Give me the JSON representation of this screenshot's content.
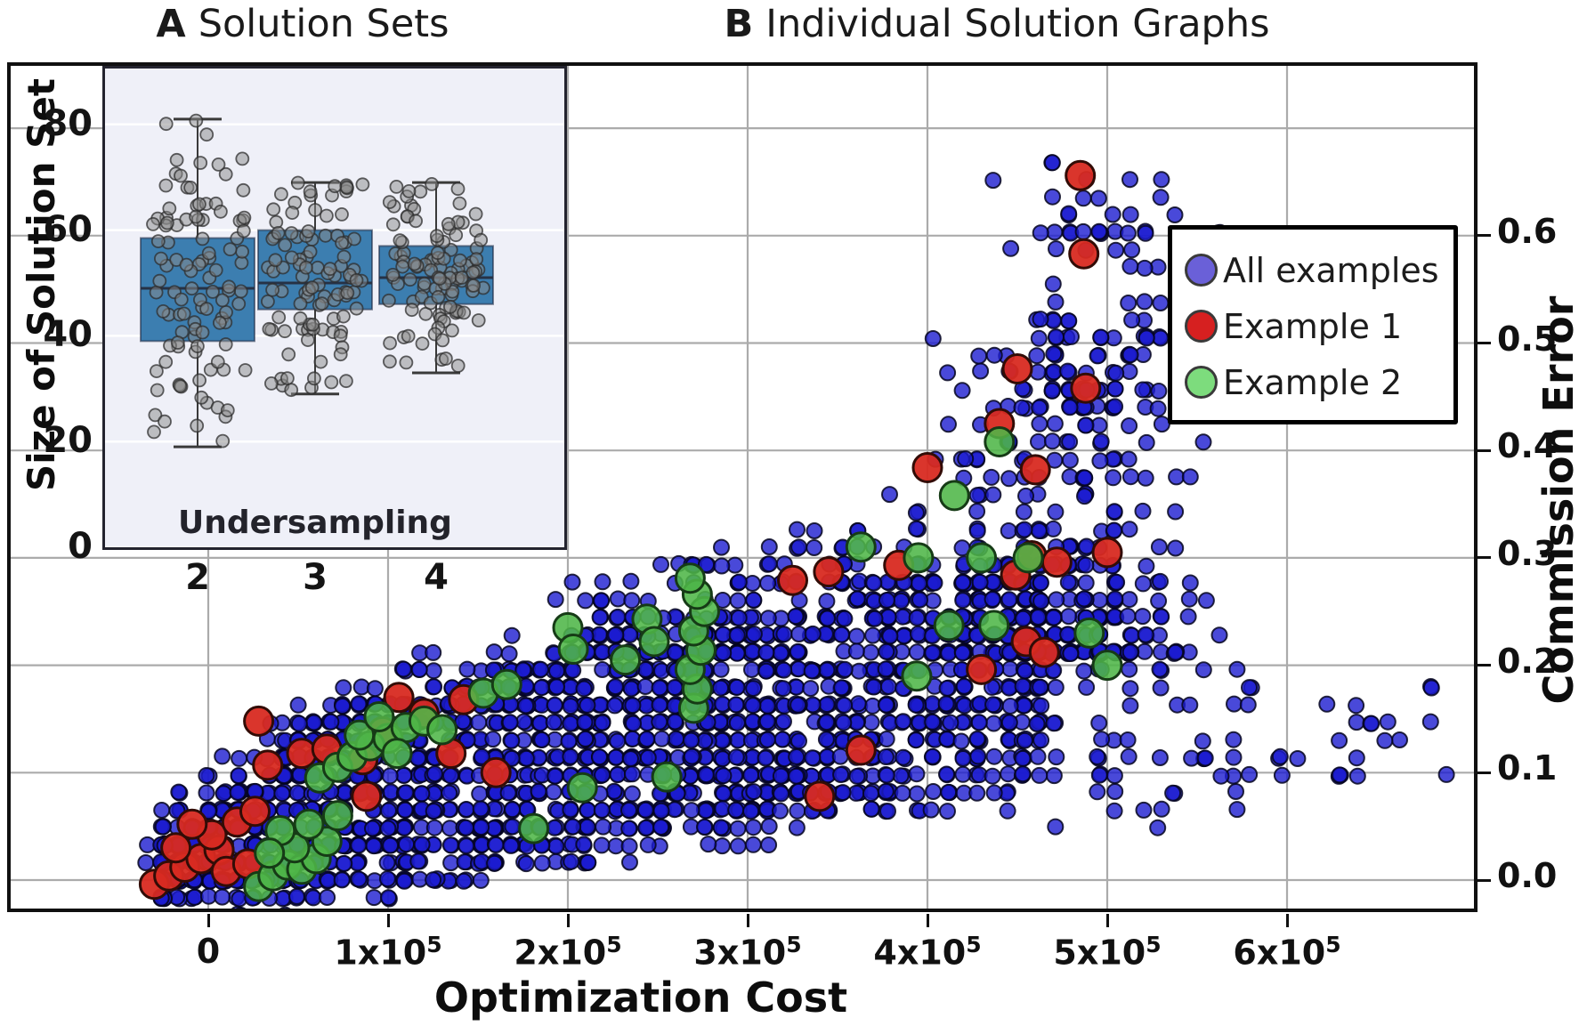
{
  "titles": {
    "panel_a": {
      "label": "A",
      "text": "Solution Sets"
    },
    "panel_b": {
      "label": "B",
      "text": "Individual Solution Graphs"
    }
  },
  "chart_data": [
    {
      "type": "box",
      "panel": "A",
      "title": "Solution Sets",
      "xlabel": "Undersampling",
      "ylabel": "Size of Solution Set",
      "categories": [
        "2",
        "3",
        "4"
      ],
      "yticks": [
        0,
        20,
        40,
        60,
        80
      ],
      "ylim": [
        0,
        91
      ],
      "grid": true,
      "background_color": "#eff0f8",
      "gridline_color": "#ffffff",
      "box_fill_color": "#3c7eb0",
      "box_edge_color": "rgba(25,35,60,0.55)",
      "median_color": "#263246",
      "whisker_color": "#3a3a3a",
      "boxes": [
        {
          "category": "2",
          "whisker_low": 19,
          "q1": 39,
          "median": 49,
          "q3": 58.5,
          "whisker_high": 81
        },
        {
          "category": "3",
          "whisker_low": 29,
          "q1": 45,
          "median": 50,
          "q3": 60,
          "whisker_high": 69
        },
        {
          "category": "4",
          "whisker_low": 33,
          "q1": 46,
          "median": 51,
          "q3": 57,
          "whisker_high": 69
        }
      ],
      "jitter_points": {
        "seed": 7,
        "color": "#8a8a8a",
        "edge": "#2e2e2e",
        "radius": 7,
        "x_spread": 0.4,
        "clusters": [
          {
            "category": 0,
            "n": 58,
            "dist": "normal",
            "mean": 49,
            "sd": 7,
            "min": 36,
            "max": 62
          },
          {
            "category": 0,
            "n": 24,
            "dist": "uniform",
            "min": 61,
            "max": 75
          },
          {
            "category": 0,
            "n": 3,
            "dist": "uniform",
            "min": 78,
            "max": 81
          },
          {
            "category": 0,
            "n": 21,
            "dist": "uniform",
            "min": 19,
            "max": 36
          },
          {
            "category": 1,
            "n": 60,
            "dist": "normal",
            "mean": 52,
            "sd": 6,
            "min": 41,
            "max": 64
          },
          {
            "category": 1,
            "n": 22,
            "dist": "uniform",
            "min": 57,
            "max": 69
          },
          {
            "category": 1,
            "n": 21,
            "dist": "uniform",
            "min": 30,
            "max": 44
          },
          {
            "category": 2,
            "n": 68,
            "dist": "normal",
            "mean": 51,
            "sd": 4.5,
            "min": 43,
            "max": 60
          },
          {
            "category": 2,
            "n": 24,
            "dist": "uniform",
            "min": 58,
            "max": 69
          },
          {
            "category": 2,
            "n": 15,
            "dist": "uniform",
            "min": 33,
            "max": 45
          }
        ]
      }
    },
    {
      "type": "scatter",
      "panel": "B",
      "title": "Individual Solution Graphs",
      "xlabel": "Optimization Cost",
      "ylabel": "Commission Error",
      "xlim": [
        -106000,
        704000
      ],
      "ylim": [
        -0.026,
        0.758
      ],
      "grid": true,
      "gridline_color": "#ababab",
      "xticks": [
        {
          "value": 0,
          "base": "0",
          "sup": ""
        },
        {
          "value": 100000,
          "base": "1x10",
          "sup": "5"
        },
        {
          "value": 200000,
          "base": "2x10",
          "sup": "5"
        },
        {
          "value": 300000,
          "base": "3x10",
          "sup": "5"
        },
        {
          "value": 400000,
          "base": "4x10",
          "sup": "5"
        },
        {
          "value": 500000,
          "base": "5x10",
          "sup": "5"
        },
        {
          "value": 600000,
          "base": "6x10",
          "sup": "5"
        }
      ],
      "yticks": [
        {
          "value": 0.0,
          "label": "0.0"
        },
        {
          "value": 0.1,
          "label": "0.1"
        },
        {
          "value": 0.2,
          "label": "0.2"
        },
        {
          "value": 0.3,
          "label": "0.3"
        },
        {
          "value": 0.4,
          "label": "0.4"
        },
        {
          "value": 0.5,
          "label": "0.5"
        },
        {
          "value": 0.6,
          "label": "0.6"
        }
      ],
      "gridline_y_values": [
        0.0,
        0.1,
        0.2,
        0.3,
        0.4,
        0.5,
        0.6,
        0.7
      ],
      "legend": {
        "position": "upper right",
        "entries": [
          {
            "label": "All examples",
            "marker_color": "#6a60d8"
          },
          {
            "label": "Example 1",
            "marker_color": "#d62020"
          },
          {
            "label": "Example 2",
            "marker_color": "#7ddc7d"
          }
        ]
      },
      "series": [
        {
          "name": "All examples",
          "marker": "circle",
          "radius": 8.5,
          "fill": "#1c1ccf",
          "fill_opacity": 0.8,
          "edge": "#05051e",
          "cloud": {
            "seed": 42,
            "x_quant": 8400,
            "y_quant": 0.0163,
            "band": {
              "n": 1800,
              "x_min": -30000,
              "x_max": 470000,
              "x_nodes": [
                -30000,
                0,
                50000,
                100000,
                150000,
                200000,
                250000,
                300000,
                350000,
                400000,
                450000,
                470000
              ],
              "top": [
                0.03,
                0.055,
                0.125,
                0.16,
                0.185,
                0.2,
                0.215,
                0.23,
                0.25,
                0.27,
                0.28,
                0.27
              ],
              "bottom": [
                -0.012,
                -0.012,
                -0.006,
                0.0,
                0.015,
                0.03,
                0.045,
                0.055,
                0.068,
                0.08,
                0.09,
                0.1
              ]
            },
            "fringe_top": {
              "n": 240,
              "dy": 0.04
            },
            "fringe_bottom": {
              "n": 90,
              "dy": 0.022
            },
            "plume": {
              "n": 360,
              "x_mean": 480000,
              "x_sd": 33000,
              "x_min": 368000,
              "x_max": 562000,
              "y_min": 0.205,
              "y_max": 0.52,
              "pow": 1.7
            },
            "plume_top": {
              "n": 70,
              "x_mean": 497000,
              "x_sd": 28000,
              "y_min": 0.44,
              "y_max": 0.675
            },
            "mid_scatter": {
              "n": 80,
              "x_min": 190000,
              "x_max": 400000,
              "dy_max": 0.075
            },
            "right_tail": {
              "n": 48,
              "x_min": 470000,
              "x_max": 580000,
              "y_min": 0.055,
              "y_max": 0.205
            },
            "far_tail": {
              "n": 26,
              "x_min": 575000,
              "x_max": 690000,
              "y_min": 0.09,
              "y_max": 0.18
            }
          }
        },
        {
          "name": "Example 1",
          "marker": "circle",
          "radius": 16,
          "fill": "#d82a21",
          "fill_opacity": 0.95,
          "edge": "#320c06",
          "points": [
            [
              -30000,
              -0.004
            ],
            [
              -22000,
              0.004
            ],
            [
              -13000,
              0.012
            ],
            [
              -4000,
              0.02
            ],
            [
              6000,
              0.028
            ],
            [
              -18000,
              0.03
            ],
            [
              2000,
              0.042
            ],
            [
              16000,
              0.054
            ],
            [
              -9000,
              0.052
            ],
            [
              10000,
              0.008
            ],
            [
              26000,
              0.064
            ],
            [
              22000,
              0.015
            ],
            [
              28000,
              0.148
            ],
            [
              33000,
              0.107
            ],
            [
              52000,
              0.118
            ],
            [
              66000,
              0.122
            ],
            [
              86000,
              0.112
            ],
            [
              97000,
              0.138
            ],
            [
              120000,
              0.155
            ],
            [
              106000,
              0.17
            ],
            [
              88000,
              0.078
            ],
            [
              142000,
              0.168
            ],
            [
              160000,
              0.1
            ],
            [
              135000,
              0.118
            ],
            [
              325000,
              0.279
            ],
            [
              345000,
              0.287
            ],
            [
              384000,
              0.293
            ],
            [
              363000,
              0.121
            ],
            [
              340000,
              0.078
            ],
            [
              430000,
              0.196
            ],
            [
              449000,
              0.284
            ],
            [
              400000,
              0.384
            ],
            [
              460000,
              0.382
            ],
            [
              440000,
              0.425
            ],
            [
              450000,
              0.476
            ],
            [
              488000,
              0.458
            ],
            [
              487000,
              0.583
            ],
            [
              485000,
              0.656
            ],
            [
              458000,
              0.302
            ],
            [
              472000,
              0.296
            ],
            [
              500000,
              0.305
            ],
            [
              455000,
              0.222
            ],
            [
              465000,
              0.212
            ]
          ]
        },
        {
          "name": "Example 2",
          "marker": "circle",
          "radius": 16,
          "fill": "#4eb648",
          "fill_opacity": 0.88,
          "edge": "#163b16",
          "points": [
            [
              28000,
              -0.006
            ],
            [
              36000,
              0.004
            ],
            [
              44000,
              0.014
            ],
            [
              52000,
              0.01
            ],
            [
              60000,
              0.02
            ],
            [
              48000,
              0.03
            ],
            [
              66000,
              0.036
            ],
            [
              40000,
              0.046
            ],
            [
              56000,
              0.052
            ],
            [
              72000,
              0.06
            ],
            [
              34000,
              0.025
            ],
            [
              62000,
              0.095
            ],
            [
              72000,
              0.105
            ],
            [
              80000,
              0.115
            ],
            [
              90000,
              0.125
            ],
            [
              100000,
              0.132
            ],
            [
              110000,
              0.142
            ],
            [
              84000,
              0.135
            ],
            [
              120000,
              0.148
            ],
            [
              95000,
              0.152
            ],
            [
              130000,
              0.14
            ],
            [
              105000,
              0.118
            ],
            [
              153000,
              0.174
            ],
            [
              166000,
              0.182
            ],
            [
              181000,
              0.048
            ],
            [
              208000,
              0.086
            ],
            [
              255000,
              0.096
            ],
            [
              200000,
              0.235
            ],
            [
              203000,
              0.215
            ],
            [
              244000,
              0.243
            ],
            [
              248000,
              0.222
            ],
            [
              232000,
              0.205
            ],
            [
              270000,
              0.16
            ],
            [
              272000,
              0.178
            ],
            [
              268000,
              0.196
            ],
            [
              274000,
              0.214
            ],
            [
              270000,
              0.232
            ],
            [
              276000,
              0.25
            ],
            [
              272000,
              0.266
            ],
            [
              268000,
              0.281
            ],
            [
              363000,
              0.31
            ],
            [
              395000,
              0.3
            ],
            [
              412000,
              0.237
            ],
            [
              437000,
              0.237
            ],
            [
              394000,
              0.19
            ],
            [
              440000,
              0.408
            ],
            [
              430000,
              0.3
            ],
            [
              456000,
              0.3
            ],
            [
              490000,
              0.23
            ],
            [
              500000,
              0.2
            ],
            [
              415000,
              0.358
            ]
          ]
        }
      ]
    }
  ]
}
